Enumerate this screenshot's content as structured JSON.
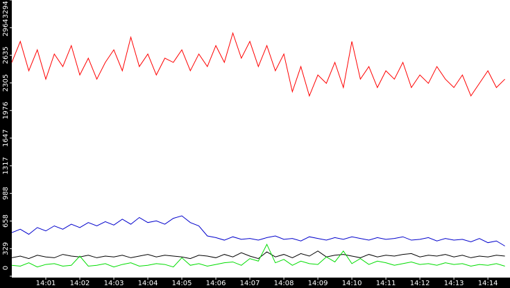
{
  "chart_data": {
    "type": "line",
    "x": [
      840,
      840.25,
      840.5,
      840.75,
      841,
      841.25,
      841.5,
      841.75,
      842,
      842.25,
      842.5,
      842.75,
      843,
      843.25,
      843.5,
      843.75,
      844,
      844.25,
      844.5,
      844.75,
      845,
      845.25,
      845.5,
      845.75,
      846,
      846.25,
      846.5,
      846.75,
      847,
      847.25,
      847.5,
      847.75,
      848,
      848.25,
      848.5,
      848.75,
      849,
      849.25,
      849.5,
      849.75,
      850,
      850.25,
      850.5,
      850.75,
      851,
      851.25,
      851.5,
      851.75,
      852,
      852.25,
      852.5,
      852.75,
      853,
      853.25,
      853.5,
      853.75,
      854,
      854.25,
      854.5
    ],
    "series": [
      {
        "color": "#ff0000",
        "values": [
          2550,
          2800,
          2450,
          2700,
          2350,
          2650,
          2500,
          2750,
          2400,
          2600,
          2350,
          2550,
          2700,
          2450,
          2850,
          2500,
          2650,
          2400,
          2600,
          2550,
          2700,
          2450,
          2650,
          2500,
          2750,
          2550,
          2900,
          2600,
          2800,
          2500,
          2750,
          2450,
          2650,
          2200,
          2500,
          2150,
          2400,
          2300,
          2550,
          2250,
          2800,
          2350,
          2500,
          2250,
          2450,
          2350,
          2550,
          2250,
          2400,
          2300,
          2500,
          2350,
          2250,
          2400,
          2150,
          2300,
          2450,
          2250,
          2350
        ]
      },
      {
        "color": "#0000cc",
        "values": [
          520,
          560,
          500,
          580,
          540,
          600,
          560,
          620,
          580,
          640,
          600,
          650,
          610,
          680,
          620,
          700,
          640,
          660,
          620,
          690,
          720,
          640,
          600,
          480,
          460,
          430,
          470,
          440,
          450,
          430,
          460,
          480,
          440,
          450,
          420,
          470,
          450,
          430,
          460,
          440,
          470,
          450,
          430,
          460,
          440,
          450,
          470,
          430,
          440,
          460,
          420,
          450,
          430,
          440,
          410,
          450,
          400,
          420,
          360
        ]
      },
      {
        "color": "#000000",
        "values": [
          220,
          240,
          210,
          250,
          230,
          220,
          260,
          240,
          230,
          250,
          220,
          240,
          230,
          250,
          220,
          240,
          260,
          230,
          250,
          240,
          230,
          210,
          250,
          240,
          220,
          260,
          230,
          280,
          240,
          210,
          290,
          230,
          260,
          220,
          270,
          240,
          300,
          230,
          250,
          260,
          240,
          220,
          260,
          230,
          250,
          240,
          260,
          270,
          230,
          250,
          240,
          260,
          230,
          250,
          220,
          240,
          230,
          250,
          240
        ]
      },
      {
        "color": "#00dd00",
        "values": [
          130,
          120,
          160,
          110,
          140,
          150,
          120,
          130,
          240,
          120,
          130,
          150,
          110,
          140,
          160,
          120,
          130,
          150,
          140,
          110,
          220,
          130,
          150,
          120,
          140,
          160,
          170,
          130,
          210,
          180,
          380,
          160,
          200,
          130,
          180,
          150,
          140,
          230,
          170,
          300,
          150,
          210,
          140,
          180,
          160,
          130,
          150,
          170,
          140,
          150,
          130,
          160,
          140,
          150,
          120,
          140,
          130,
          150,
          120
        ]
      }
    ],
    "xlim": [
      840,
      854.65
    ],
    "xticks": [
      {
        "value": 841,
        "label": "14:01"
      },
      {
        "value": 842,
        "label": "14:02"
      },
      {
        "value": 843,
        "label": "14:03"
      },
      {
        "value": 844,
        "label": "14:04"
      },
      {
        "value": 845,
        "label": "14:05"
      },
      {
        "value": 846,
        "label": "14:06"
      },
      {
        "value": 847,
        "label": "14:07"
      },
      {
        "value": 848,
        "label": "14:08"
      },
      {
        "value": 849,
        "label": "14:09"
      },
      {
        "value": 850,
        "label": "14:10"
      },
      {
        "value": 851,
        "label": "14:11"
      },
      {
        "value": 852,
        "label": "14:12"
      },
      {
        "value": 853,
        "label": "14:13"
      },
      {
        "value": 854,
        "label": "14:14"
      }
    ],
    "ylim": [
      0,
      3294
    ],
    "yticks": [
      0,
      329,
      658,
      988,
      1317,
      1647,
      1976,
      2305,
      2635,
      2964,
      3294
    ]
  }
}
